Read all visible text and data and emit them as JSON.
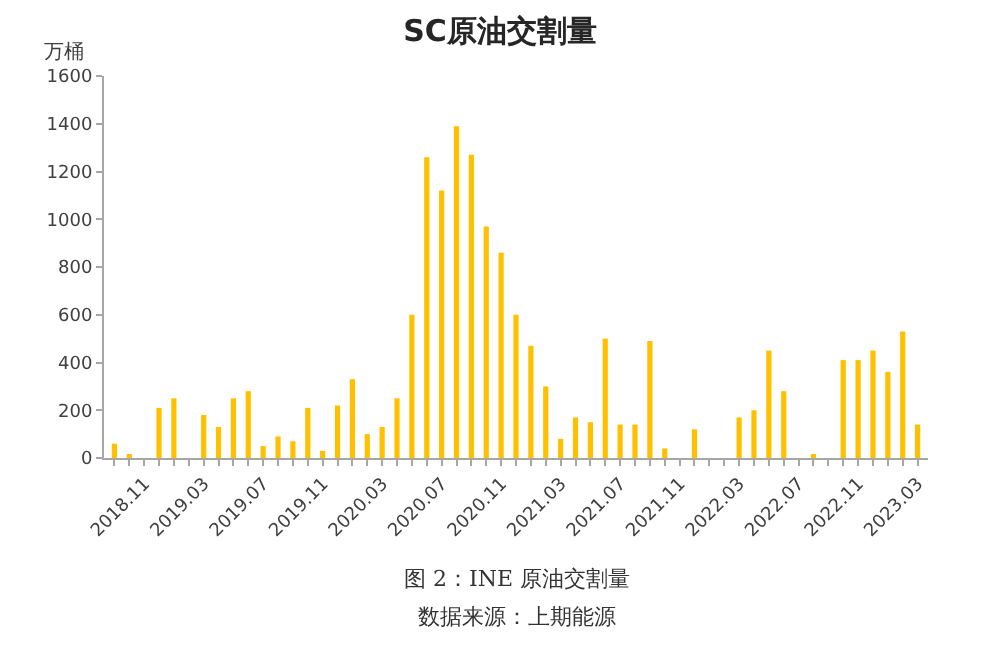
{
  "chart_data": {
    "type": "bar",
    "title": "SC原油交割量",
    "ylabel": "万桶",
    "annotations": [
      "图 2：INE 原油交割量",
      "数据来源：上期能源"
    ],
    "categories": [
      null,
      null,
      "2018.11",
      null,
      null,
      null,
      "2019.03",
      null,
      null,
      null,
      "2019.07",
      null,
      null,
      null,
      "2019.11",
      null,
      null,
      null,
      "2020.03",
      null,
      null,
      null,
      "2020.07",
      null,
      null,
      null,
      "2020.11",
      null,
      null,
      null,
      "2021.03",
      null,
      null,
      null,
      "2021.07",
      null,
      null,
      null,
      "2021.11",
      null,
      null,
      null,
      "2022.03",
      null,
      null,
      null,
      "2022.07",
      null,
      null,
      null,
      "2022.11",
      null,
      null,
      null,
      "2023.03"
    ],
    "values": [
      60,
      10,
      0,
      210,
      250,
      0,
      180,
      130,
      250,
      280,
      50,
      90,
      70,
      210,
      30,
      220,
      330,
      100,
      130,
      250,
      600,
      1260,
      1120,
      1390,
      1270,
      970,
      860,
      600,
      470,
      300,
      80,
      170,
      150,
      500,
      140,
      140,
      490,
      40,
      0,
      120,
      0,
      0,
      170,
      200,
      450,
      280,
      0,
      10,
      0,
      410,
      410,
      450,
      360,
      530,
      140
    ],
    "color": "#ffc000",
    "ylim": [
      0,
      1600
    ],
    "yticks": [
      0,
      200,
      400,
      600,
      800,
      1000,
      1200,
      1400,
      1600
    ],
    "grid": false
  }
}
